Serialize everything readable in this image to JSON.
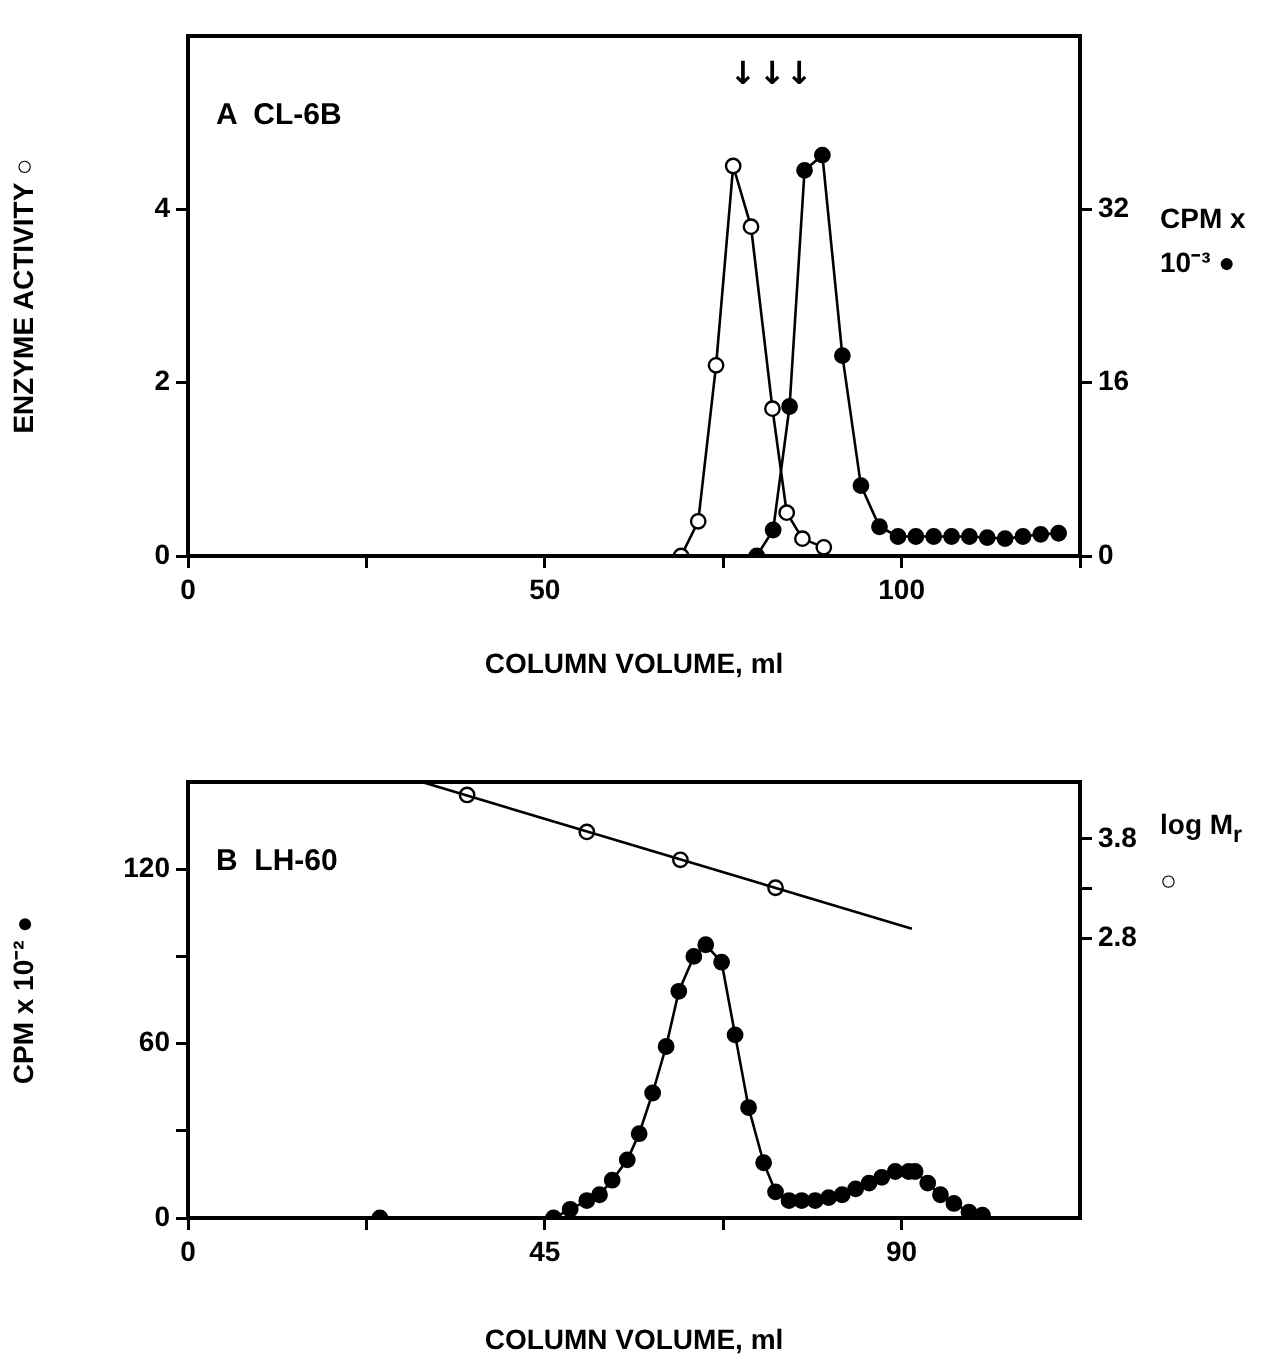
{
  "chart_data": [
    {
      "type": "line",
      "title": "A  CL-6B",
      "xlabel": "COLUMN VOLUME, ml",
      "ylabel": "ENZYME ACTIVITY ○",
      "y2label": "CPM x 10⁻³ ●",
      "xlim": [
        0,
        125
      ],
      "xticks": [
        0,
        {
          "value": 25,
          "label": null
        },
        50,
        {
          "value": 75,
          "label": null
        },
        100,
        {
          "value": 125,
          "label": null
        }
      ],
      "ylim": [
        0,
        6
      ],
      "yticks": [
        0,
        2,
        4
      ],
      "y2lim": [
        0,
        48
      ],
      "y2ticks": [
        0,
        16,
        32
      ],
      "grid": false,
      "legend": false,
      "marker": "circle",
      "annotations": [
        "↓",
        "↓↓"
      ],
      "series": [
        {
          "color": "#ffffff",
          "x": [
            69.1,
            71.5,
            74.0,
            76.4,
            78.9,
            81.9,
            83.9,
            86.1,
            89.1
          ],
          "values": [
            0,
            0.4,
            2.2,
            4.5,
            3.8,
            1.7,
            0.5,
            0.2,
            0.1
          ]
        },
        {
          "color": "#000000",
          "axis": "y2",
          "x": [
            79.7,
            82.0,
            84.3,
            86.4,
            88.9,
            91.7,
            94.3,
            96.9,
            99.5,
            102,
            104.5,
            107,
            109.5,
            112,
            114.5,
            117,
            119.5,
            122
          ],
          "values": [
            0,
            2.4,
            13.8,
            35.6,
            37,
            18.5,
            6.5,
            2.7,
            1.8,
            1.8,
            1.8,
            1.8,
            1.8,
            1.7,
            1.6,
            1.8,
            2,
            2.1
          ]
        }
      ]
    },
    {
      "type": "line",
      "title": "B  LH-60",
      "xlabel": "COLUMN VOLUME, ml",
      "ylabel": "CPM x 10⁻² ●",
      "y2label": "log M$_{r}$ ○",
      "xlim": [
        0,
        112.5
      ],
      "xticks": [
        0,
        {
          "value": 22.5,
          "label": null
        },
        45,
        {
          "value": 67.5,
          "label": null
        },
        90
      ],
      "ylim": [
        0,
        150
      ],
      "yticks": [
        0,
        {
          "value": 30,
          "label": null
        },
        60,
        {
          "value": 90,
          "label": null
        },
        120
      ],
      "y2lim": [
        0,
        4.37
      ],
      "y2ticks": [
        {
          "value": 2.8,
          "label": "2.8"
        },
        {
          "value": 3.3,
          "label": null
        },
        3.8
      ],
      "grid": false,
      "legend": false,
      "marker": "circle",
      "series": [
        {
          "type": "scatter",
          "color": "#000000",
          "x": [
            24.2
          ],
          "values": [
            0
          ]
        },
        {
          "color": "#000000",
          "x": [
            46.1,
            48.2,
            50.3,
            51.9,
            53.5,
            55.4,
            56.9,
            58.6,
            60.3,
            61.9,
            63.8,
            65.3,
            67.3,
            69.0,
            70.7,
            72.6,
            74.1,
            75.8,
            77.4,
            79.1,
            80.8,
            82.5,
            84.2,
            85.9,
            87.5,
            89.2,
            90.9,
            91.7,
            93.3,
            94.9,
            96.6,
            98.5,
            100.2
          ],
          "values": [
            0,
            3,
            6,
            8,
            13,
            20,
            29,
            43,
            59,
            78,
            90,
            94,
            88,
            63,
            38,
            19,
            9,
            6,
            6,
            6,
            7,
            8,
            10,
            12,
            14,
            16,
            16,
            16,
            12,
            8,
            5,
            2,
            1
          ]
        },
        {
          "type": "line",
          "marker": "none",
          "color": "#000000",
          "axis": "y2",
          "x": [
            29.5,
            91.3
          ],
          "values": [
            4.37,
            2.9
          ]
        },
        {
          "type": "scatter",
          "color": "#ffffff",
          "axis": "y2",
          "x": [
            35.2,
            50.3,
            62.1,
            74.1
          ],
          "values": [
            4.24,
            3.87,
            3.59,
            3.31
          ]
        }
      ]
    }
  ]
}
